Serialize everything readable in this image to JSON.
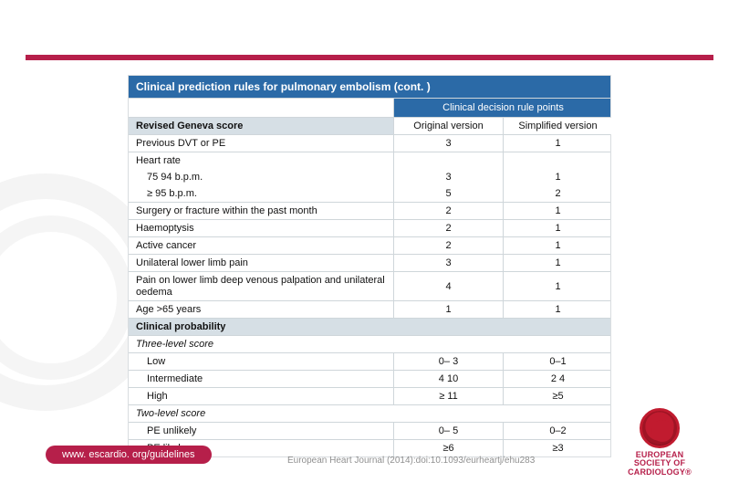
{
  "colors": {
    "accent_bar": "#b61f4a",
    "table_header_bg": "#2b6aa7",
    "table_header_fg": "#ffffff",
    "section_bg": "#d6dfe5",
    "grid": "#cfd6da",
    "text": "#111111",
    "watermark": "#f0f0f0"
  },
  "table": {
    "title": "Clinical prediction rules for pulmonary embolism (cont. )",
    "decision_header": "Clinical decision rule points",
    "section1_label": "Revised Geneva score",
    "col_original": "Original version",
    "col_simplified": "Simplified version",
    "rows1": [
      {
        "label": "Previous DVT or PE",
        "orig": "3",
        "simp": "1"
      },
      {
        "label": "Heart rate",
        "orig": "",
        "simp": ""
      },
      {
        "label": "75  94 b.p.m.",
        "orig": "3",
        "simp": "1",
        "indent": true
      },
      {
        "label": "≥ 95 b.p.m.",
        "orig": "5",
        "simp": "2",
        "indent": true
      },
      {
        "label": "Surgery or fracture within the past month",
        "orig": "2",
        "simp": "1"
      },
      {
        "label": "Haemoptysis",
        "orig": "2",
        "simp": "1"
      },
      {
        "label": "Active cancer",
        "orig": "2",
        "simp": "1"
      },
      {
        "label": "Unilateral lower limb pain",
        "orig": "3",
        "simp": "1"
      },
      {
        "label": "Pain on lower limb deep venous palpation and unilateral oedema",
        "orig": "4",
        "simp": "1",
        "multiline": true
      },
      {
        "label": "Age >65 years",
        "orig": "1",
        "simp": "1"
      }
    ],
    "section2_label": "Clinical probability",
    "three_level_label": "Three-level score",
    "three_level": [
      {
        "label": "Low",
        "orig": "0– 3",
        "simp": "0–1"
      },
      {
        "label": "Intermediate",
        "orig": "4  10",
        "simp": "2  4"
      },
      {
        "label": "High",
        "orig": "≥ 11",
        "simp": "≥5"
      }
    ],
    "two_level_label": "Two-level score",
    "two_level": [
      {
        "label": "PE unlikely",
        "orig": "0– 5",
        "simp": "0–2"
      },
      {
        "label": "PE likely",
        "orig": "≥6",
        "simp": "≥3"
      }
    ]
  },
  "footer": {
    "link": "www. escardio. org/guidelines",
    "citation": "European Heart Journal (2014):doi:10.1093/eurheartj/ehu283",
    "logo_line1": "EUROPEAN",
    "logo_line2": "SOCIETY OF",
    "logo_line3": "CARDIOLOGY®"
  }
}
